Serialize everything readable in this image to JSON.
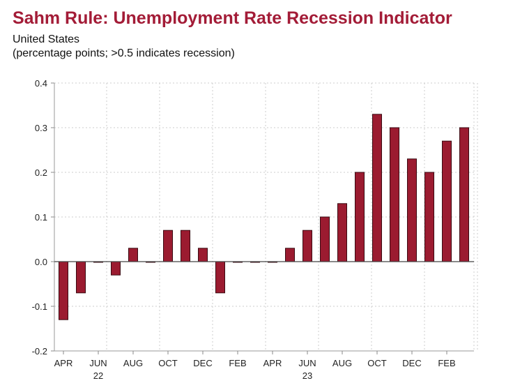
{
  "chart_data": {
    "type": "bar",
    "title": "Sahm Rule: Unemployment Rate Recession Indicator",
    "subtitle": "United States",
    "ylabel": "(percentage points; >0.5 indicates recession)",
    "xlabel": "",
    "ylim": [
      -0.2,
      0.4
    ],
    "yticks": [
      "0.4",
      "0.3",
      "0.2",
      "0.1",
      "0.0",
      "-0.1",
      "-0.2"
    ],
    "ytick_values": [
      0.4,
      0.3,
      0.2,
      0.1,
      0,
      -0.1,
      -0.2
    ],
    "grid": true,
    "categories": [
      "Apr 2022",
      "May 2022",
      "Jun 2022",
      "Jul 2022",
      "Aug 2022",
      "Sep 2022",
      "Oct 2022",
      "Nov 2022",
      "Dec 2022",
      "Jan 2023",
      "Feb 2023",
      "Mar 2023",
      "Apr 2023",
      "May 2023",
      "Jun 2023",
      "Jul 2023",
      "Aug 2023",
      "Sep 2023",
      "Oct 2023",
      "Nov 2023",
      "Dec 2023",
      "Jan 2024",
      "Feb 2024",
      "Mar 2024"
    ],
    "values": [
      -0.13,
      -0.07,
      0,
      -0.03,
      0.03,
      0,
      0.07,
      0.07,
      0.03,
      -0.07,
      0,
      0,
      0,
      0.03,
      0.07,
      0.1,
      0.13,
      0.2,
      0.33,
      0.3,
      0.23,
      0.2,
      0.27,
      0.3
    ],
    "xtick_labels": [
      {
        "index": 0,
        "label": "APR"
      },
      {
        "index": 2,
        "label": "JUN"
      },
      {
        "index": 4,
        "label": "AUG"
      },
      {
        "index": 6,
        "label": "OCT"
      },
      {
        "index": 8,
        "label": "DEC"
      },
      {
        "index": 10,
        "label": "FEB"
      },
      {
        "index": 12,
        "label": "APR"
      },
      {
        "index": 14,
        "label": "JUN"
      },
      {
        "index": 16,
        "label": "AUG"
      },
      {
        "index": 18,
        "label": "OCT"
      },
      {
        "index": 20,
        "label": "DEC"
      },
      {
        "index": 22,
        "label": "FEB"
      }
    ],
    "year_labels": [
      {
        "index": 2,
        "label": "22"
      },
      {
        "index": 14,
        "label": "23"
      }
    ],
    "bar_color": "#9b1b30",
    "title_color": "#a31c37"
  }
}
